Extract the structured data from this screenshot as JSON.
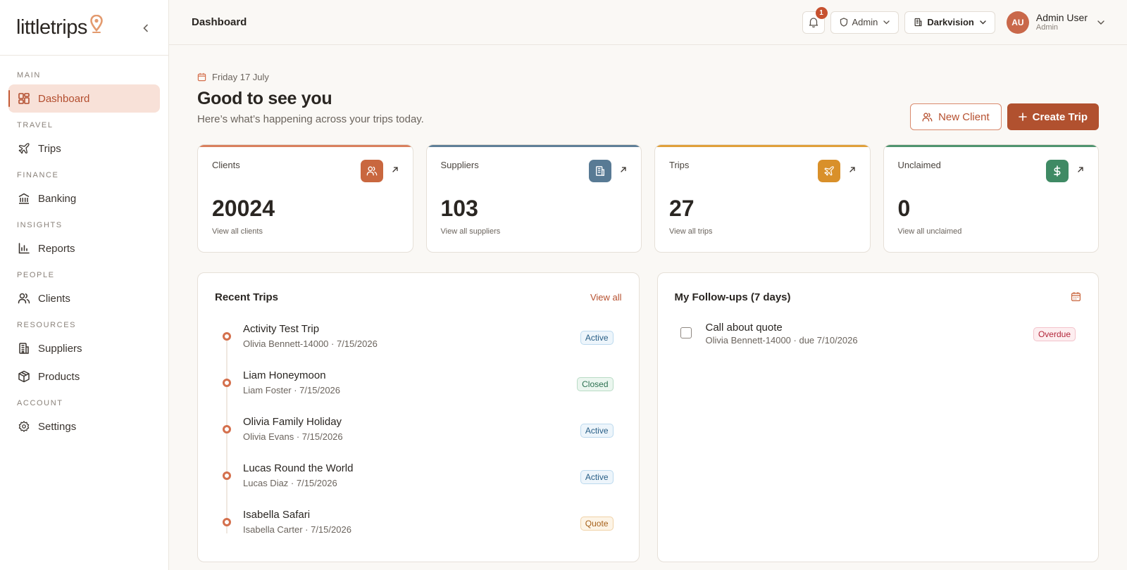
{
  "brand": {
    "name": "littletrips"
  },
  "sidebar": {
    "sections": [
      {
        "label": "MAIN",
        "items": [
          {
            "label": "Dashboard",
            "icon": "grid-icon",
            "active": true
          }
        ]
      },
      {
        "label": "TRAVEL",
        "items": [
          {
            "label": "Trips",
            "icon": "plane-icon"
          }
        ]
      },
      {
        "label": "FINANCE",
        "items": [
          {
            "label": "Banking",
            "icon": "bank-icon"
          }
        ]
      },
      {
        "label": "INSIGHTS",
        "items": [
          {
            "label": "Reports",
            "icon": "bar-chart-icon"
          }
        ]
      },
      {
        "label": "PEOPLE",
        "items": [
          {
            "label": "Clients",
            "icon": "users-icon"
          }
        ]
      },
      {
        "label": "RESOURCES",
        "items": [
          {
            "label": "Suppliers",
            "icon": "building-icon"
          },
          {
            "label": "Products",
            "icon": "package-icon"
          }
        ]
      },
      {
        "label": "ACCOUNT",
        "items": [
          {
            "label": "Settings",
            "icon": "gear-icon"
          }
        ]
      }
    ]
  },
  "header": {
    "title": "Dashboard",
    "notification_count": "1",
    "role_selector": "Admin",
    "org_selector": "Darkvision",
    "user": {
      "initials": "AU",
      "name": "Admin User",
      "role": "Admin"
    }
  },
  "main": {
    "date": "Friday 17 July",
    "greeting": "Good to see you",
    "subgreeting": "Here’s what’s happening across your trips today.",
    "new_client_label": "New Client",
    "create_trip_label": "Create Trip"
  },
  "stats": [
    {
      "label": "Clients",
      "value": "20024",
      "link": "View all clients",
      "icon": "users-icon",
      "color": "#c9673f"
    },
    {
      "label": "Suppliers",
      "value": "103",
      "link": "View all suppliers",
      "icon": "building-icon",
      "color": "#587a94"
    },
    {
      "label": "Trips",
      "value": "27",
      "link": "View all trips",
      "icon": "plane-icon",
      "color": "#d9902a"
    },
    {
      "label": "Unclaimed",
      "value": "0",
      "link": "View all unclaimed",
      "icon": "dollar-icon",
      "color": "#3f8a64"
    }
  ],
  "recent_trips": {
    "title": "Recent Trips",
    "view_all": "View all",
    "items": [
      {
        "name": "Activity Test Trip",
        "meta": "Olivia Bennett-14000 · 7/15/2026",
        "status": "Active"
      },
      {
        "name": "Liam Honeymoon",
        "meta": "Liam Foster · 7/15/2026",
        "status": "Closed"
      },
      {
        "name": "Olivia Family Holiday",
        "meta": "Olivia Evans · 7/15/2026",
        "status": "Active"
      },
      {
        "name": "Lucas Round the World",
        "meta": "Lucas Diaz · 7/15/2026",
        "status": "Active"
      },
      {
        "name": "Isabella Safari",
        "meta": "Isabella Carter · 7/15/2026",
        "status": "Quote"
      }
    ]
  },
  "followups": {
    "title": "My Follow-ups (7 days)",
    "items": [
      {
        "title": "Call about quote",
        "meta": "Olivia Bennett-14000 · due 7/10/2026",
        "status": "Overdue"
      }
    ]
  },
  "colors": {
    "accent": "#b1512f",
    "accent_soft": "#f8e1d8",
    "background": "#faf8f5"
  }
}
